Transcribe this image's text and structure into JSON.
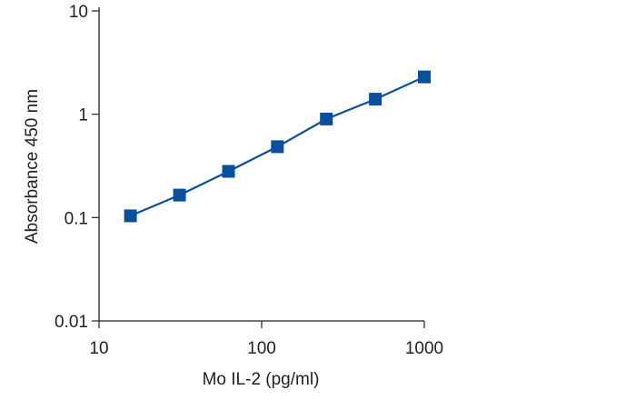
{
  "chart_data": {
    "type": "line",
    "title": "",
    "xlabel": "Mo IL-2 (pg/ml)",
    "ylabel": "Absorbance 450 nm",
    "x_scale": "log",
    "y_scale": "log",
    "xlim": [
      10,
      1000
    ],
    "ylim": [
      0.01,
      10
    ],
    "x_ticks": [
      {
        "value": 10,
        "label": "10"
      },
      {
        "value": 100,
        "label": "100"
      },
      {
        "value": 1000,
        "label": "1000"
      }
    ],
    "y_ticks": [
      {
        "value": 0.01,
        "label": "0.01"
      },
      {
        "value": 0.1,
        "label": "0.1"
      },
      {
        "value": 1,
        "label": "1"
      },
      {
        "value": 10,
        "label": "10"
      }
    ],
    "grid": false,
    "legend": "none",
    "color": "#0a4f9c",
    "marker": "square",
    "series": [
      {
        "x": [
          15.6,
          31.25,
          62.5,
          125,
          250,
          500,
          1000
        ],
        "y": [
          0.104,
          0.165,
          0.28,
          0.485,
          0.9,
          1.4,
          2.3
        ]
      }
    ]
  }
}
